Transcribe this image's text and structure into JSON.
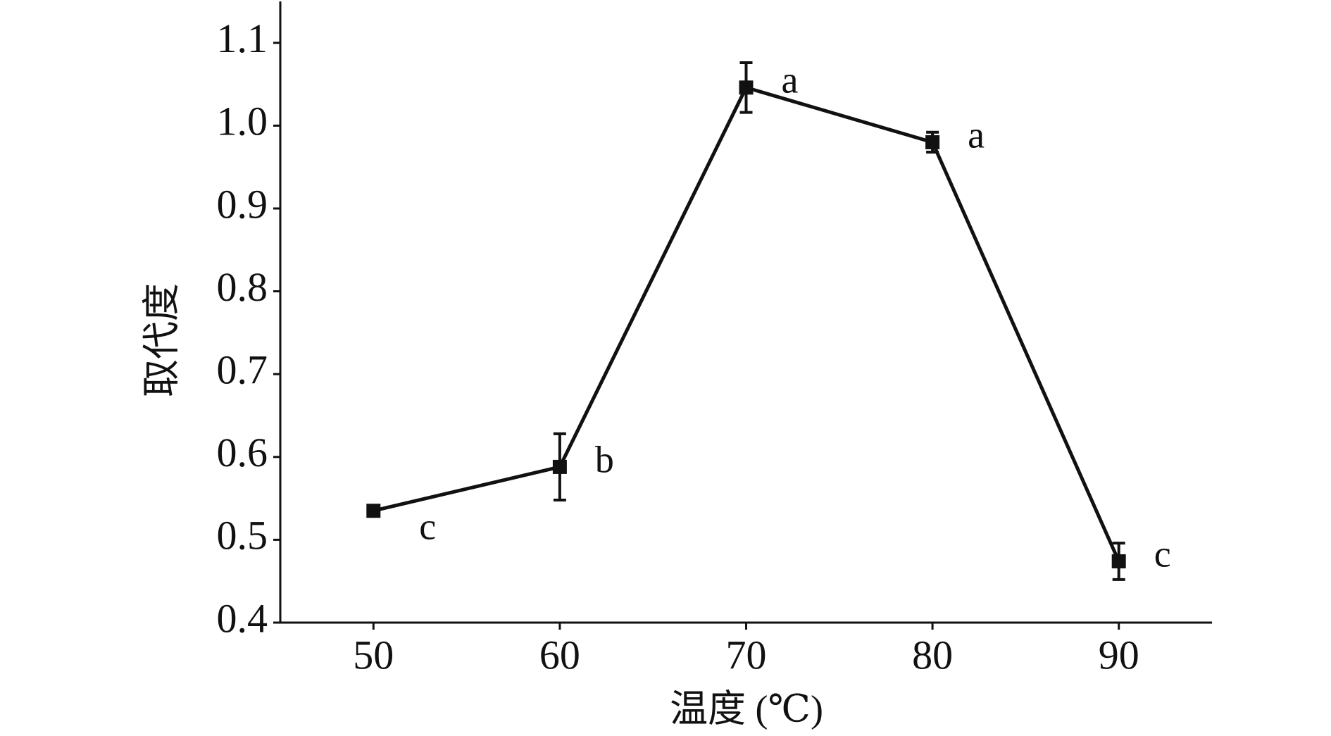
{
  "chart_data": {
    "type": "line",
    "xlabel": "温度 (℃)",
    "ylabel": "取代度",
    "x": [
      50,
      60,
      70,
      80,
      90
    ],
    "series": [
      {
        "name": "取代度",
        "color": "#111111",
        "values": [
          0.535,
          0.588,
          1.046,
          0.98,
          0.474
        ],
        "errors": [
          0.005,
          0.04,
          0.03,
          0.012,
          0.022
        ],
        "value_annotations": [
          "c",
          "b",
          "a",
          "a",
          "c"
        ]
      }
    ],
    "xlim": [
      45,
      95
    ],
    "xticks": [
      50,
      60,
      70,
      80,
      90
    ],
    "ylim": [
      0.4,
      1.15
    ],
    "yticks": [
      {
        "value": 0.4,
        "label": "0.4"
      },
      {
        "value": 0.5,
        "label": "0.5"
      },
      {
        "value": 0.6,
        "label": "0.6"
      },
      {
        "value": 0.7,
        "label": "0.7"
      },
      {
        "value": 0.8,
        "label": "0.8"
      },
      {
        "value": 0.9,
        "label": "0.9"
      },
      {
        "value": 1.0,
        "label": "1.0"
      },
      {
        "value": 1.1,
        "label": "1.1"
      }
    ],
    "grid": false
  }
}
